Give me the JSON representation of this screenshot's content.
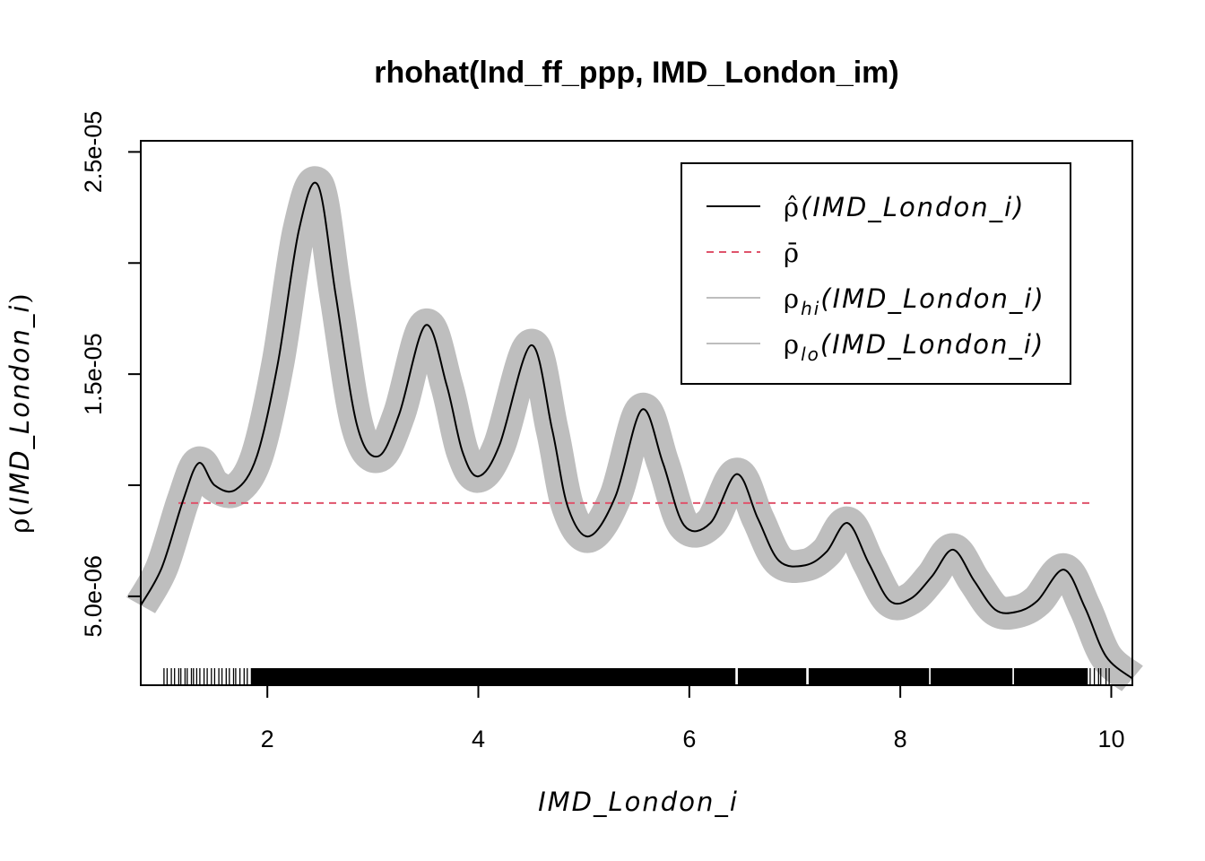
{
  "chart_data": {
    "type": "line",
    "title": "rhohat(lnd_ff_ppp, IMD_London_im)",
    "xlabel": "IMD_London_i",
    "ylabel": "IMD_London_i",
    "ylabel_symbol": "ρ",
    "xlim": [
      0.8,
      10.2
    ],
    "ylim": [
      1e-06,
      2.55e-05
    ],
    "x_ticks": [
      2,
      4,
      6,
      8,
      10
    ],
    "x_tick_labels": [
      "2",
      "4",
      "6",
      "8",
      "10"
    ],
    "y_ticks": [
      5e-06,
      1e-05,
      1.5e-05,
      2e-05,
      2.5e-05
    ],
    "y_tick_labels": [
      "5.0e-06",
      "",
      "1.5e-05",
      "",
      "2.5e-05"
    ],
    "series": [
      {
        "name": "rho_hat",
        "color": "#000000",
        "x": [
          0.8,
          1.0,
          1.2,
          1.35,
          1.5,
          1.7,
          1.9,
          2.1,
          2.3,
          2.48,
          2.65,
          2.85,
          3.05,
          3.25,
          3.5,
          3.7,
          3.85,
          4.0,
          4.2,
          4.5,
          4.7,
          4.85,
          5.05,
          5.3,
          5.55,
          5.75,
          5.95,
          6.2,
          6.45,
          6.65,
          6.85,
          7.1,
          7.3,
          7.5,
          7.7,
          7.9,
          8.1,
          8.3,
          8.5,
          8.7,
          8.9,
          9.1,
          9.3,
          9.55,
          9.75,
          9.95,
          10.2
        ],
        "values": [
          4.6e-06,
          6.3e-06,
          9.3e-06,
          1.1e-05,
          1e-05,
          9.8e-06,
          1.13e-05,
          1.55e-05,
          2.15e-05,
          2.35e-05,
          1.85e-05,
          1.27e-05,
          1.13e-05,
          1.32e-05,
          1.72e-05,
          1.45e-05,
          1.15e-05,
          1.04e-05,
          1.18e-05,
          1.63e-05,
          1.25e-05,
          9e-06,
          7.7e-06,
          9.5e-06,
          1.34e-05,
          1.1e-05,
          8.2e-06,
          8.3e-06,
          1.05e-05,
          8.5e-06,
          6.6e-06,
          6.4e-06,
          7e-06,
          8.3e-06,
          6.5e-06,
          4.8e-06,
          4.9e-06,
          5.9e-06,
          7.1e-06,
          5.7e-06,
          4.4e-06,
          4.3e-06,
          4.8e-06,
          6.2e-06,
          4.5e-06,
          2.3e-06,
          1.3e-06
        ]
      },
      {
        "name": "rho_bar",
        "color": "#df536b",
        "style": "dashed",
        "x": [
          0.8,
          10.2
        ],
        "values": [
          9.2e-06,
          9.2e-06
        ]
      }
    ],
    "band": {
      "name": "rho_hi / rho_lo",
      "color": "#bebebe",
      "halfwidth": 7e-07
    },
    "rug": {
      "x": [
        1.02,
        1.05,
        1.09,
        1.12,
        1.16,
        1.18,
        1.22,
        1.24,
        1.28,
        1.3,
        1.33,
        1.36,
        1.4,
        1.43,
        1.47,
        1.5,
        1.54,
        1.57,
        1.61,
        1.64,
        1.68,
        1.7,
        1.74,
        1.78,
        1.81,
        1.85,
        9.8,
        9.84,
        9.88,
        9.9,
        9.95,
        9.98
      ],
      "dense_from": 1.85,
      "dense_to": 9.78,
      "gaps": [
        6.45,
        7.12,
        8.28,
        9.07
      ]
    }
  },
  "legend": {
    "items": [
      {
        "id": "rho_hat",
        "symbol": "ρ̂",
        "subscript": "",
        "arg": "(IMD_London_i)",
        "color": "#000000",
        "style": "solid"
      },
      {
        "id": "rho_bar",
        "symbol": "ρ̄",
        "subscript": "",
        "arg": "",
        "color": "#df536b",
        "style": "dashed"
      },
      {
        "id": "rho_hi",
        "symbol": "ρ",
        "subscript": "hi",
        "arg": "(IMD_London_i)",
        "color": "#bebebe",
        "style": "solid"
      },
      {
        "id": "rho_lo",
        "symbol": "ρ",
        "subscript": "lo",
        "arg": "(IMD_London_i)",
        "color": "#bebebe",
        "style": "solid"
      }
    ]
  }
}
